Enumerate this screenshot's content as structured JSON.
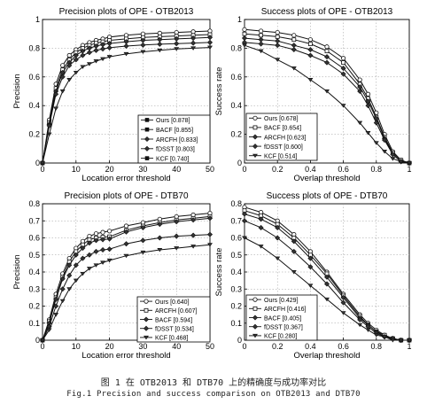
{
  "figure": {
    "caption_cn": "图 1 在 OTB2013 和 DTB70 上的精确度与成功率对比",
    "caption_en": "Fig.1 Precision and success comparison on OTB2013 and DTB70"
  },
  "markers": [
    "circle",
    "square",
    "diamond",
    "diamond",
    "triangle"
  ],
  "chart_data": [
    {
      "type": "line",
      "title": "Precision plots of OPE - OTB2013",
      "xlabel": "Location error threshold",
      "ylabel": "Precision",
      "xlim": [
        0,
        50
      ],
      "ylim": [
        0,
        1
      ],
      "xticks": [
        0,
        10,
        20,
        30,
        40,
        50
      ],
      "yticks": [
        0,
        0.2,
        0.4,
        0.6,
        0.8,
        1
      ],
      "yticklabels": [
        "0",
        "0.2",
        "0.4",
        "0.6",
        "0.8",
        "1"
      ],
      "grid": true,
      "legend_position": "bottom-right",
      "legend_markers": [
        "filled-square",
        "filled-square",
        "diamond",
        "diamond",
        "filled-square"
      ],
      "x": [
        0,
        2,
        4,
        6,
        8,
        10,
        12,
        14,
        16,
        18,
        20,
        25,
        30,
        35,
        40,
        45,
        50
      ],
      "series": [
        {
          "name": "Ours",
          "legend_label": "Ours [0.878]",
          "values": [
            0,
            0.3,
            0.55,
            0.68,
            0.75,
            0.79,
            0.82,
            0.84,
            0.855,
            0.865,
            0.878,
            0.89,
            0.9,
            0.905,
            0.91,
            0.915,
            0.92
          ]
        },
        {
          "name": "BACF",
          "legend_label": "BACF [0.855]",
          "values": [
            0,
            0.28,
            0.52,
            0.65,
            0.72,
            0.77,
            0.8,
            0.82,
            0.835,
            0.845,
            0.855,
            0.865,
            0.875,
            0.88,
            0.885,
            0.89,
            0.895
          ]
        },
        {
          "name": "ARCFH",
          "legend_label": "ARCFH [0.833]",
          "values": [
            0,
            0.27,
            0.5,
            0.63,
            0.7,
            0.75,
            0.78,
            0.8,
            0.815,
            0.825,
            0.833,
            0.845,
            0.855,
            0.86,
            0.865,
            0.87,
            0.875
          ]
        },
        {
          "name": "fDSST",
          "legend_label": "fDSST [0.803]",
          "values": [
            0,
            0.26,
            0.48,
            0.6,
            0.68,
            0.72,
            0.75,
            0.77,
            0.785,
            0.795,
            0.803,
            0.815,
            0.822,
            0.828,
            0.832,
            0.836,
            0.84
          ]
        },
        {
          "name": "KCF",
          "legend_label": "KCF [0.740]",
          "values": [
            0,
            0.2,
            0.38,
            0.5,
            0.58,
            0.63,
            0.67,
            0.69,
            0.71,
            0.725,
            0.74,
            0.76,
            0.775,
            0.785,
            0.795,
            0.8,
            0.805
          ]
        }
      ]
    },
    {
      "type": "line",
      "title": "Success plots of OPE - OTB2013",
      "xlabel": "Overlap threshold",
      "ylabel": "Success rate",
      "xlim": [
        0,
        1
      ],
      "ylim": [
        0,
        1
      ],
      "xticks": [
        0,
        0.2,
        0.4,
        0.6,
        0.8,
        1
      ],
      "yticks": [
        0,
        0.2,
        0.4,
        0.6,
        0.8,
        1
      ],
      "xticklabels": [
        "0",
        "0.2",
        "0.4",
        "0.6",
        "0.8",
        "1"
      ],
      "yticklabels": [
        "0",
        "0.2",
        "0.4",
        "0.6",
        "0.8",
        "1"
      ],
      "grid": true,
      "legend_position": "bottom-left",
      "x": [
        0,
        0.1,
        0.2,
        0.3,
        0.4,
        0.5,
        0.6,
        0.7,
        0.75,
        0.8,
        0.85,
        0.9,
        0.95,
        1
      ],
      "series": [
        {
          "name": "Ours",
          "legend_label": "Ours [0.678]",
          "values": [
            0.93,
            0.92,
            0.91,
            0.89,
            0.86,
            0.81,
            0.73,
            0.58,
            0.48,
            0.35,
            0.2,
            0.08,
            0.02,
            0
          ]
        },
        {
          "name": "BACF",
          "legend_label": "BACF [0.654]",
          "values": [
            0.9,
            0.89,
            0.88,
            0.86,
            0.83,
            0.78,
            0.7,
            0.55,
            0.45,
            0.32,
            0.18,
            0.07,
            0.02,
            0
          ]
        },
        {
          "name": "ARCFH",
          "legend_label": "ARCFH [0.623]",
          "values": [
            0.87,
            0.86,
            0.85,
            0.82,
            0.79,
            0.74,
            0.66,
            0.53,
            0.43,
            0.31,
            0.17,
            0.06,
            0.01,
            0
          ]
        },
        {
          "name": "fDSST",
          "legend_label": "fDSST [0.600]",
          "values": [
            0.84,
            0.83,
            0.82,
            0.79,
            0.75,
            0.7,
            0.62,
            0.5,
            0.4,
            0.28,
            0.16,
            0.06,
            0.01,
            0
          ]
        },
        {
          "name": "KCF",
          "legend_label": "KCF [0.514]",
          "values": [
            0.82,
            0.78,
            0.72,
            0.66,
            0.58,
            0.5,
            0.4,
            0.28,
            0.21,
            0.14,
            0.08,
            0.03,
            0.01,
            0
          ]
        }
      ]
    },
    {
      "type": "line",
      "title": "Precision plots of OPE - DTB70",
      "xlabel": "Location error threshold",
      "ylabel": "Precision",
      "xlim": [
        0,
        50
      ],
      "ylim": [
        0,
        0.8
      ],
      "xticks": [
        0,
        10,
        20,
        30,
        40,
        50
      ],
      "yticks": [
        0,
        0.1,
        0.2,
        0.3,
        0.4,
        0.5,
        0.6,
        0.7,
        0.8
      ],
      "yticklabels": [
        "0",
        "0.1",
        "0.2",
        "0.3",
        "0.4",
        "0.5",
        "0.6",
        "0.7",
        "0.8"
      ],
      "grid": true,
      "legend_position": "bottom-right",
      "x": [
        0,
        2,
        4,
        6,
        8,
        10,
        12,
        14,
        16,
        18,
        20,
        25,
        30,
        35,
        40,
        45,
        50
      ],
      "series": [
        {
          "name": "Ours",
          "legend_label": "Ours [0.640]",
          "values": [
            0,
            0.12,
            0.27,
            0.39,
            0.48,
            0.54,
            0.58,
            0.61,
            0.625,
            0.633,
            0.64,
            0.67,
            0.69,
            0.71,
            0.725,
            0.735,
            0.745
          ]
        },
        {
          "name": "ARCFH",
          "legend_label": "ARCFH [0.607]",
          "values": [
            0,
            0.11,
            0.25,
            0.37,
            0.46,
            0.52,
            0.56,
            0.59,
            0.6,
            0.605,
            0.607,
            0.645,
            0.67,
            0.69,
            0.705,
            0.715,
            0.725
          ]
        },
        {
          "name": "BACF",
          "legend_label": "BACF [0.594]",
          "values": [
            0,
            0.1,
            0.24,
            0.36,
            0.44,
            0.5,
            0.54,
            0.57,
            0.585,
            0.59,
            0.594,
            0.635,
            0.66,
            0.68,
            0.695,
            0.705,
            0.715
          ]
        },
        {
          "name": "fDSST",
          "legend_label": "fDSST [0.534]",
          "values": [
            0,
            0.08,
            0.2,
            0.3,
            0.38,
            0.44,
            0.48,
            0.5,
            0.52,
            0.53,
            0.534,
            0.565,
            0.585,
            0.6,
            0.61,
            0.615,
            0.62
          ]
        },
        {
          "name": "KCF",
          "legend_label": "KCF [0.468]",
          "values": [
            0,
            0.06,
            0.15,
            0.23,
            0.3,
            0.35,
            0.39,
            0.42,
            0.44,
            0.455,
            0.468,
            0.495,
            0.515,
            0.53,
            0.54,
            0.55,
            0.56
          ]
        }
      ]
    },
    {
      "type": "line",
      "title": "Success plots of OPE - DTB70",
      "xlabel": "Overlap threshold",
      "ylabel": "Success rate",
      "xlim": [
        0,
        1
      ],
      "ylim": [
        0,
        0.8
      ],
      "xticks": [
        0,
        0.2,
        0.4,
        0.6,
        0.8,
        1
      ],
      "yticks": [
        0,
        0.1,
        0.2,
        0.3,
        0.4,
        0.5,
        0.6,
        0.7,
        0.8
      ],
      "xticklabels": [
        "0",
        "0.2",
        "0.4",
        "0.6",
        "0.8",
        "1"
      ],
      "yticklabels": [
        "0",
        "0.1",
        "0.2",
        "0.3",
        "0.4",
        "0.5",
        "0.6",
        "0.7",
        "0.8"
      ],
      "grid": true,
      "legend_position": "bottom-left",
      "x": [
        0,
        0.1,
        0.2,
        0.3,
        0.4,
        0.5,
        0.6,
        0.7,
        0.75,
        0.8,
        0.85,
        0.9,
        0.95,
        1
      ],
      "series": [
        {
          "name": "Ours",
          "legend_label": "Ours [0.429]",
          "values": [
            0.78,
            0.75,
            0.7,
            0.62,
            0.52,
            0.4,
            0.27,
            0.15,
            0.1,
            0.06,
            0.03,
            0.01,
            0,
            0
          ]
        },
        {
          "name": "ARCFH",
          "legend_label": "ARCFH [0.416]",
          "values": [
            0.76,
            0.73,
            0.68,
            0.6,
            0.5,
            0.39,
            0.26,
            0.14,
            0.09,
            0.05,
            0.03,
            0.01,
            0,
            0
          ]
        },
        {
          "name": "BACF",
          "legend_label": "BACF [0.405]",
          "values": [
            0.74,
            0.71,
            0.66,
            0.58,
            0.48,
            0.37,
            0.25,
            0.13,
            0.09,
            0.05,
            0.02,
            0.01,
            0,
            0
          ]
        },
        {
          "name": "fDSST",
          "legend_label": "fDSST [0.367]",
          "values": [
            0.7,
            0.66,
            0.6,
            0.52,
            0.43,
            0.33,
            0.22,
            0.12,
            0.08,
            0.04,
            0.02,
            0.01,
            0,
            0
          ]
        },
        {
          "name": "KCF",
          "legend_label": "KCF [0.280]",
          "values": [
            0.6,
            0.55,
            0.48,
            0.4,
            0.32,
            0.24,
            0.16,
            0.09,
            0.06,
            0.03,
            0.02,
            0,
            0,
            0
          ]
        }
      ]
    }
  ]
}
